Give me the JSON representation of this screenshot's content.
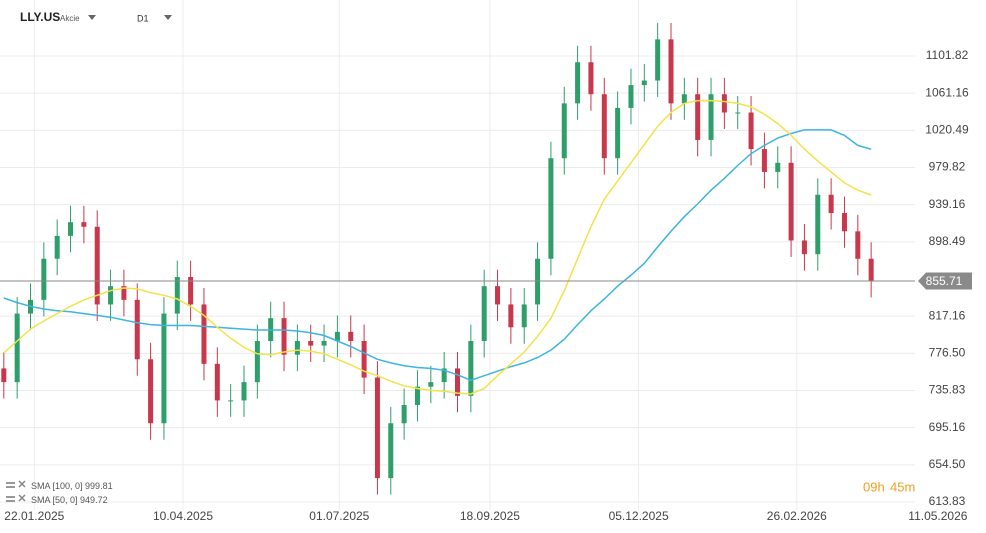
{
  "chart_data": {
    "type": "candlestick",
    "title": "LLY.US",
    "subtitle": "Akcie",
    "timeframe": "D1",
    "countdown_hours": "09h",
    "countdown_minutes": "45m",
    "last_price": 855.71,
    "up_color": "#2e9e6b",
    "down_color": "#c8374b",
    "grid": true,
    "x": [
      "2025-01-06",
      "2025-01-13",
      "2025-01-20",
      "2025-01-27",
      "2025-02-03",
      "2025-02-10",
      "2025-02-17",
      "2025-02-24",
      "2025-03-03",
      "2025-03-10",
      "2025-03-17",
      "2025-03-24",
      "2025-03-31",
      "2025-04-07",
      "2025-04-14",
      "2025-04-21",
      "2025-04-28",
      "2025-05-05",
      "2025-05-12",
      "2025-05-19",
      "2025-05-26",
      "2025-06-02",
      "2025-06-09",
      "2025-06-16",
      "2025-06-23",
      "2025-06-30",
      "2025-07-07",
      "2025-07-14",
      "2025-07-21",
      "2025-07-28",
      "2025-08-04",
      "2025-08-11",
      "2025-08-18",
      "2025-08-25",
      "2025-09-01",
      "2025-09-08",
      "2025-09-15",
      "2025-09-22",
      "2025-09-29",
      "2025-10-06",
      "2025-10-13",
      "2025-10-20",
      "2025-10-27",
      "2025-11-03",
      "2025-11-10",
      "2025-11-17",
      "2025-11-24",
      "2025-12-01",
      "2025-12-08",
      "2025-12-15",
      "2025-12-22",
      "2025-12-29",
      "2026-01-05",
      "2026-01-12",
      "2026-01-19",
      "2026-01-26",
      "2026-02-02",
      "2026-02-09",
      "2026-02-16",
      "2026-02-23",
      "2026-03-02",
      "2026-03-09",
      "2026-03-16",
      "2026-03-23",
      "2026-03-30",
      "2026-04-06"
    ],
    "open": [
      760,
      745,
      820,
      835,
      880,
      905,
      920,
      915,
      830,
      850,
      835,
      770,
      700,
      820,
      860,
      830,
      765,
      725,
      725,
      745,
      790,
      815,
      775,
      790,
      785,
      790,
      800,
      790,
      750,
      640,
      700,
      720,
      740,
      745,
      760,
      730,
      790,
      850,
      830,
      805,
      830,
      880,
      990,
      1050,
      1095,
      1060,
      990,
      1045,
      1070,
      1075,
      1120,
      1050,
      1060,
      1010,
      1060,
      1040,
      1040,
      1000,
      975,
      985,
      900,
      885,
      950,
      930,
      910,
      880
    ],
    "high": [
      778,
      838,
      853,
      898,
      923,
      938,
      938,
      933,
      868,
      868,
      853,
      788,
      838,
      878,
      878,
      848,
      783,
      743,
      763,
      808,
      833,
      833,
      808,
      808,
      808,
      818,
      818,
      808,
      768,
      718,
      738,
      758,
      763,
      778,
      778,
      808,
      868,
      868,
      848,
      848,
      898,
      1008,
      1068,
      1113,
      1113,
      1078,
      1063,
      1088,
      1093,
      1138,
      1138,
      1078,
      1078,
      1078,
      1078,
      1058,
      1058,
      1018,
      1003,
      1003,
      918,
      968,
      968,
      948,
      928,
      898
    ],
    "low": [
      727,
      727,
      802,
      817,
      862,
      887,
      897,
      812,
      812,
      817,
      752,
      682,
      682,
      802,
      812,
      747,
      707,
      707,
      707,
      727,
      772,
      757,
      757,
      767,
      767,
      772,
      772,
      732,
      622,
      622,
      682,
      702,
      722,
      727,
      712,
      712,
      772,
      812,
      787,
      787,
      812,
      862,
      972,
      1032,
      1042,
      972,
      972,
      1027,
      1052,
      1057,
      1032,
      1032,
      992,
      992,
      1022,
      1022,
      982,
      957,
      957,
      882,
      867,
      867,
      912,
      892,
      862,
      837.71
    ],
    "close": [
      745,
      820,
      835,
      880,
      905,
      920,
      915,
      830,
      850,
      835,
      770,
      700,
      820,
      860,
      830,
      765,
      725,
      725,
      745,
      790,
      815,
      775,
      790,
      785,
      790,
      800,
      790,
      750,
      640,
      700,
      720,
      740,
      745,
      760,
      730,
      790,
      850,
      830,
      805,
      830,
      880,
      990,
      1050,
      1095,
      1060,
      990,
      1045,
      1070,
      1075,
      1120,
      1050,
      1060,
      1010,
      1060,
      1040,
      1040,
      1000,
      975,
      985,
      900,
      885,
      950,
      930,
      910,
      880,
      855.71
    ],
    "series": [
      {
        "name": "SMA [100, 0]",
        "color": "#3cb4e4",
        "values": [
          837,
          832,
          828,
          825,
          823,
          822,
          820,
          818,
          816,
          813,
          810,
          808,
          807,
          807,
          807,
          806,
          805,
          804,
          803,
          802,
          802,
          802,
          801,
          799,
          796,
          790,
          784,
          777,
          770,
          766,
          763,
          761,
          760,
          758,
          753,
          747,
          752,
          757,
          762,
          766,
          772,
          780,
          792,
          808,
          823,
          836,
          850,
          862,
          875,
          893,
          910,
          926,
          940,
          955,
          968,
          982,
          995,
          1004,
          1012,
          1017,
          1021,
          1021,
          1021,
          1015,
          1004,
          999.81
        ]
      },
      {
        "name": "SMA [50, 0]",
        "color": "#f2e34a",
        "values": [
          777,
          790,
          803,
          812,
          820,
          828,
          835,
          840,
          845,
          848,
          847,
          843,
          840,
          836,
          828,
          818,
          805,
          793,
          783,
          776,
          775,
          778,
          780,
          779,
          776,
          770,
          764,
          757,
          752,
          746,
          741,
          738,
          736,
          735,
          733,
          732,
          738,
          752,
          765,
          778,
          795,
          815,
          845,
          880,
          915,
          945,
          965,
          985,
          1005,
          1025,
          1040,
          1050,
          1053,
          1053,
          1052,
          1050,
          1046,
          1038,
          1028,
          1015,
          1000,
          987,
          975,
          963,
          955,
          949.72
        ]
      }
    ],
    "xlim": [
      "2025-01-04",
      "2026-04-29"
    ],
    "xticks": [
      {
        "value": "2025-01-22",
        "label": "22.01.2025"
      },
      {
        "value": "2025-04-10",
        "label": "10.04.2025"
      },
      {
        "value": "2025-07-01",
        "label": "01.07.2025"
      },
      {
        "value": "2025-09-18",
        "label": "18.09.2025"
      },
      {
        "value": "2025-12-05",
        "label": "05.12.2025"
      },
      {
        "value": "2026-02-26",
        "label": "26.02.2026"
      },
      {
        "value": "2026-05-11",
        "label": "11.05.2026"
      }
    ],
    "ylim": [
      605.1,
      1163.1
    ],
    "yticks": [
      613.83,
      {
        "value": 654.5,
        "label": "654.50"
      },
      695.16,
      735.83,
      {
        "value": 776.5,
        "label": "776.50"
      },
      817.16,
      898.49,
      939.16,
      979.82,
      1020.49,
      1061.16,
      1101.82
    ]
  }
}
